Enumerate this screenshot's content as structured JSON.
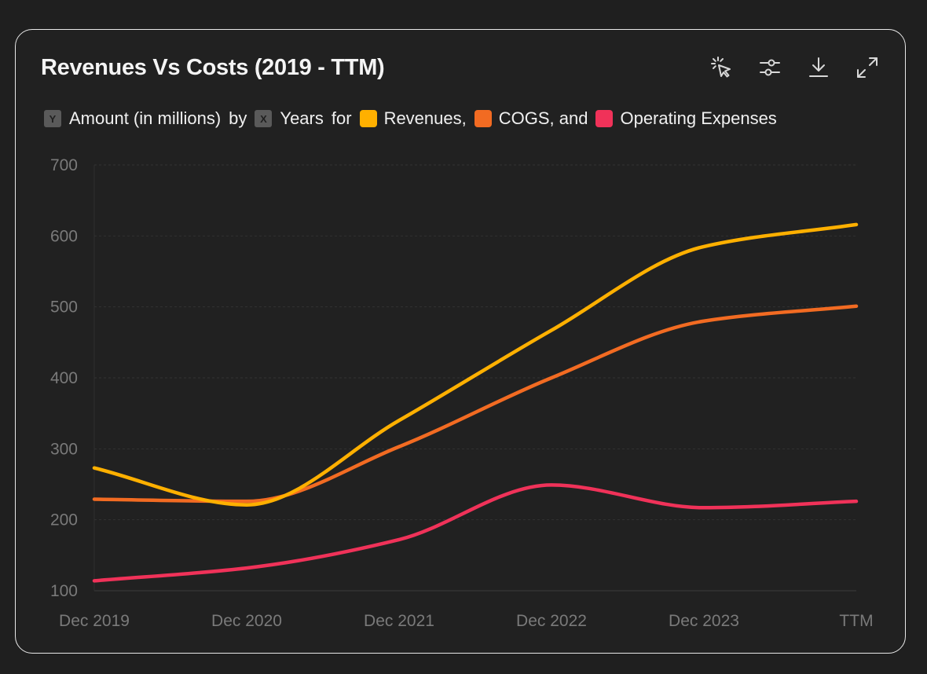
{
  "title": "Revenues Vs Costs (2019 - TTM)",
  "toolbar": {
    "icons": [
      "cursor-click-icon",
      "sliders-icon",
      "download-icon",
      "expand-icon"
    ]
  },
  "legend": {
    "y_badge": "Y",
    "y_text": "Amount (in millions)",
    "by": "by",
    "x_badge": "X",
    "x_text": "Years",
    "for": "for",
    "series": [
      {
        "label": "Revenues,",
        "color": "#ffb000"
      },
      {
        "label": "COGS, and",
        "color": "#f26b22"
      },
      {
        "label": "Operating Expenses",
        "color": "#f03259"
      }
    ]
  },
  "chart_data": {
    "type": "line",
    "categories": [
      "Dec 2019",
      "Dec 2020",
      "Dec 2021",
      "Dec 2022",
      "Dec 2023",
      "TTM"
    ],
    "series": [
      {
        "name": "Revenues",
        "color": "#ffb000",
        "values": [
          273,
          221,
          340,
          467,
          585,
          616
        ]
      },
      {
        "name": "COGS",
        "color": "#f26b22",
        "values": [
          229,
          226,
          303,
          400,
          480,
          501
        ]
      },
      {
        "name": "Operating Expenses",
        "color": "#f03259",
        "values": [
          114,
          132,
          172,
          249,
          217,
          226
        ]
      }
    ],
    "yticks": [
      100,
      200,
      300,
      400,
      500,
      600,
      700
    ],
    "ylim": [
      100,
      700
    ],
    "grid": true
  }
}
